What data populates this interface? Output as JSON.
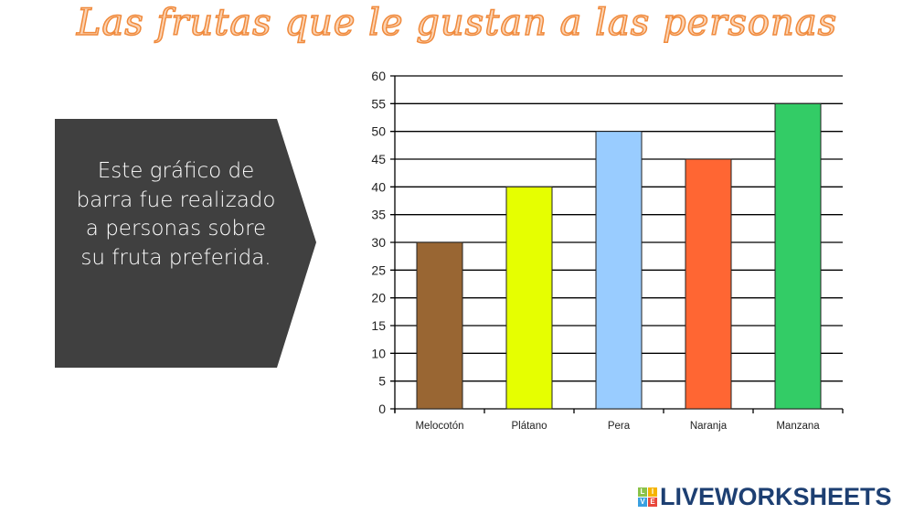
{
  "title": "Las frutas que le gustan a las personas",
  "callout": {
    "text": "Este gráfico de barra fue realizado a personas sobre su fruta preferida.",
    "color": "#404040"
  },
  "brand": {
    "text": "LIVEWORKSHEETS",
    "letters": [
      "L",
      "I",
      "V",
      "E"
    ],
    "colors": [
      "#8bc34a",
      "#f5b400",
      "#3aa0e0",
      "#e8463a"
    ],
    "text_color": "#1d3f72"
  },
  "chart_data": {
    "type": "bar",
    "title": "",
    "xlabel": "",
    "ylabel": "",
    "categories": [
      "Melocotón",
      "Plátano",
      "Pera",
      "Naranja",
      "Manzana"
    ],
    "values": [
      30,
      40,
      50,
      45,
      55
    ],
    "colors": [
      "#996633",
      "#e6ff00",
      "#99ccff",
      "#ff6633",
      "#33cc66"
    ],
    "ylim": [
      0,
      60
    ],
    "yticks": [
      0,
      5,
      10,
      15,
      20,
      25,
      30,
      35,
      40,
      45,
      50,
      55,
      60
    ],
    "grid": true,
    "legend": "none"
  }
}
